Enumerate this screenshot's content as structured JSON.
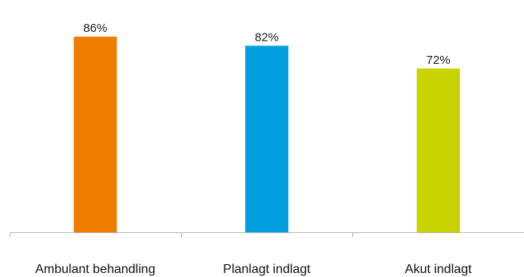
{
  "chart_data": {
    "type": "bar",
    "title": "",
    "xlabel": "",
    "ylabel": "",
    "ylim": [
      0,
      100
    ],
    "grid": false,
    "categories": [
      "Ambulant behandling",
      "Planlagt indlagt",
      "Akut indlagt"
    ],
    "values": [
      86,
      82,
      72
    ],
    "value_labels": [
      "86%",
      "82%",
      "72%"
    ],
    "colors": [
      "#F07D00",
      "#00A0E0",
      "#C8D400"
    ]
  }
}
